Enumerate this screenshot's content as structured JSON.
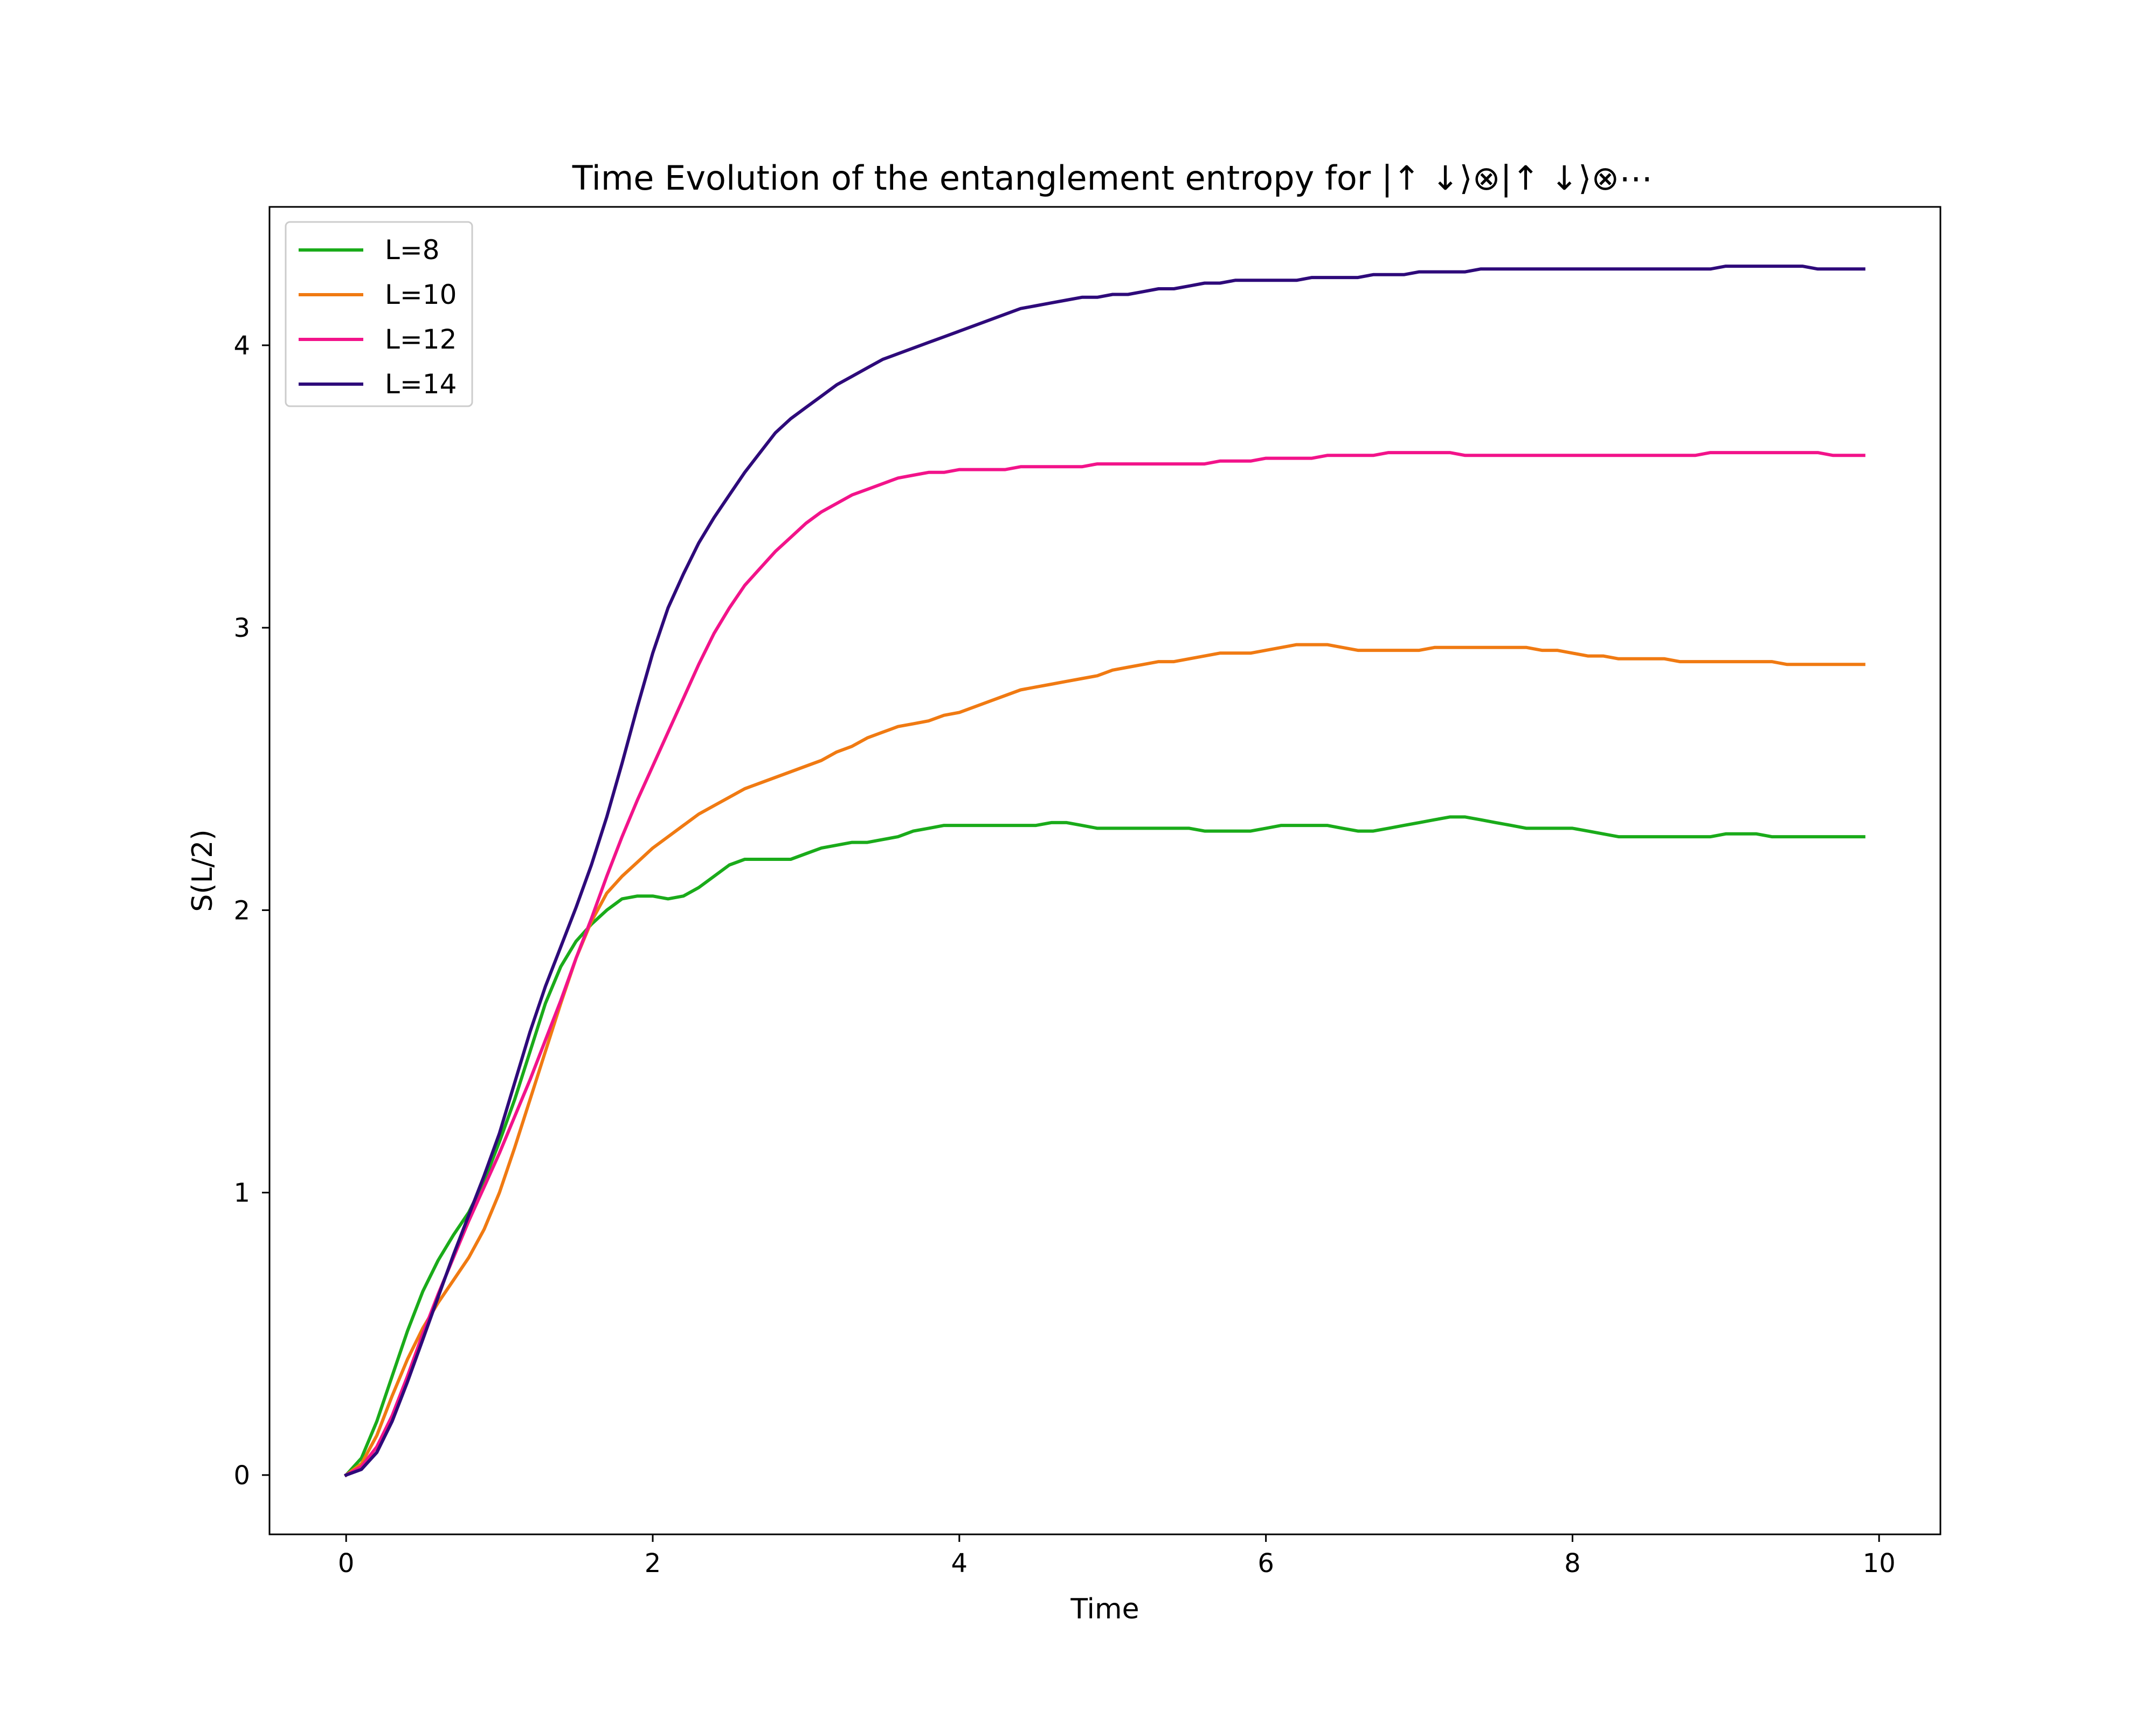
{
  "chart_data": {
    "type": "line",
    "title": "Time Evolution of the entanglement entropy for |↑ ↓⟩⊗|↑ ↓⟩⊗⋯",
    "xlabel": "Time",
    "ylabel": "S(L/2)",
    "xlim": [
      -0.5,
      10.4
    ],
    "ylim": [
      -0.21,
      4.49
    ],
    "xticks": [
      0,
      2,
      4,
      6,
      8,
      10
    ],
    "xtick_labels": [
      "0",
      "2",
      "4",
      "6",
      "8",
      "10"
    ],
    "yticks": [
      0,
      1,
      2,
      3,
      4
    ],
    "ytick_labels": [
      "0",
      "1",
      "2",
      "3",
      "4"
    ],
    "grid": false,
    "legend_position": "top-left",
    "x": [
      0,
      0.1,
      0.2,
      0.3,
      0.4,
      0.5,
      0.6,
      0.7,
      0.8,
      0.9,
      1.0,
      1.1,
      1.2,
      1.3,
      1.4,
      1.5,
      1.6,
      1.7,
      1.8,
      1.9,
      2.0,
      2.1,
      2.2,
      2.3,
      2.4,
      2.5,
      2.6,
      2.7,
      2.8,
      2.9,
      3.0,
      3.1,
      3.2,
      3.3,
      3.4,
      3.5,
      3.6,
      3.7,
      3.8,
      3.9,
      4.0,
      4.1,
      4.2,
      4.3,
      4.4,
      4.5,
      4.6,
      4.7,
      4.8,
      4.9,
      5.0,
      5.1,
      5.2,
      5.3,
      5.4,
      5.5,
      5.6,
      5.7,
      5.8,
      5.9,
      6.0,
      6.1,
      6.2,
      6.3,
      6.4,
      6.5,
      6.6,
      6.7,
      6.8,
      6.9,
      7.0,
      7.1,
      7.2,
      7.3,
      7.4,
      7.5,
      7.6,
      7.7,
      7.8,
      7.9,
      8.0,
      8.1,
      8.2,
      8.3,
      8.4,
      8.5,
      8.6,
      8.7,
      8.8,
      8.9,
      9.0,
      9.1,
      9.2,
      9.3,
      9.4,
      9.5,
      9.6,
      9.7,
      9.8,
      9.9
    ],
    "series": [
      {
        "name": "L=8",
        "color": "#1aab1a",
        "values": [
          0.0,
          0.06,
          0.19,
          0.35,
          0.51,
          0.65,
          0.76,
          0.85,
          0.93,
          1.04,
          1.18,
          1.33,
          1.5,
          1.67,
          1.8,
          1.89,
          1.95,
          2.0,
          2.04,
          2.05,
          2.05,
          2.04,
          2.05,
          2.08,
          2.12,
          2.16,
          2.18,
          2.18,
          2.18,
          2.18,
          2.2,
          2.22,
          2.23,
          2.24,
          2.24,
          2.25,
          2.26,
          2.28,
          2.29,
          2.3,
          2.3,
          2.3,
          2.3,
          2.3,
          2.3,
          2.3,
          2.31,
          2.31,
          2.3,
          2.29,
          2.29,
          2.29,
          2.29,
          2.29,
          2.29,
          2.29,
          2.28,
          2.28,
          2.28,
          2.28,
          2.29,
          2.3,
          2.3,
          2.3,
          2.3,
          2.29,
          2.28,
          2.28,
          2.29,
          2.3,
          2.31,
          2.32,
          2.33,
          2.33,
          2.32,
          2.31,
          2.3,
          2.29,
          2.29,
          2.29,
          2.29,
          2.28,
          2.27,
          2.26,
          2.26,
          2.26,
          2.26,
          2.26,
          2.26,
          2.26,
          2.27,
          2.27,
          2.27,
          2.26,
          2.26,
          2.26,
          2.26,
          2.26,
          2.26,
          2.26
        ]
      },
      {
        "name": "L=10",
        "color": "#f07a12",
        "values": [
          0.0,
          0.04,
          0.14,
          0.28,
          0.41,
          0.52,
          0.61,
          0.69,
          0.77,
          0.87,
          1.0,
          1.16,
          1.33,
          1.5,
          1.67,
          1.83,
          1.96,
          2.06,
          2.12,
          2.17,
          2.22,
          2.26,
          2.3,
          2.34,
          2.37,
          2.4,
          2.43,
          2.45,
          2.47,
          2.49,
          2.51,
          2.53,
          2.56,
          2.58,
          2.61,
          2.63,
          2.65,
          2.66,
          2.67,
          2.69,
          2.7,
          2.72,
          2.74,
          2.76,
          2.78,
          2.79,
          2.8,
          2.81,
          2.82,
          2.83,
          2.85,
          2.86,
          2.87,
          2.88,
          2.88,
          2.89,
          2.9,
          2.91,
          2.91,
          2.91,
          2.92,
          2.93,
          2.94,
          2.94,
          2.94,
          2.93,
          2.92,
          2.92,
          2.92,
          2.92,
          2.92,
          2.93,
          2.93,
          2.93,
          2.93,
          2.93,
          2.93,
          2.93,
          2.92,
          2.92,
          2.91,
          2.9,
          2.9,
          2.89,
          2.89,
          2.89,
          2.89,
          2.88,
          2.88,
          2.88,
          2.88,
          2.88,
          2.88,
          2.88,
          2.87,
          2.87,
          2.87,
          2.87,
          2.87,
          2.87
        ]
      },
      {
        "name": "L=12",
        "color": "#f2138a",
        "values": [
          0.0,
          0.03,
          0.1,
          0.21,
          0.35,
          0.5,
          0.64,
          0.77,
          0.9,
          1.02,
          1.14,
          1.27,
          1.4,
          1.54,
          1.68,
          1.83,
          1.97,
          2.12,
          2.26,
          2.39,
          2.51,
          2.63,
          2.75,
          2.87,
          2.98,
          3.07,
          3.15,
          3.21,
          3.27,
          3.32,
          3.37,
          3.41,
          3.44,
          3.47,
          3.49,
          3.51,
          3.53,
          3.54,
          3.55,
          3.55,
          3.56,
          3.56,
          3.56,
          3.56,
          3.57,
          3.57,
          3.57,
          3.57,
          3.57,
          3.58,
          3.58,
          3.58,
          3.58,
          3.58,
          3.58,
          3.58,
          3.58,
          3.59,
          3.59,
          3.59,
          3.6,
          3.6,
          3.6,
          3.6,
          3.61,
          3.61,
          3.61,
          3.61,
          3.62,
          3.62,
          3.62,
          3.62,
          3.62,
          3.61,
          3.61,
          3.61,
          3.61,
          3.61,
          3.61,
          3.61,
          3.61,
          3.61,
          3.61,
          3.61,
          3.61,
          3.61,
          3.61,
          3.61,
          3.61,
          3.62,
          3.62,
          3.62,
          3.62,
          3.62,
          3.62,
          3.62,
          3.62,
          3.61,
          3.61,
          3.61
        ]
      },
      {
        "name": "L=14",
        "color": "#2e0a7a",
        "values": [
          0.0,
          0.02,
          0.08,
          0.19,
          0.33,
          0.48,
          0.63,
          0.78,
          0.92,
          1.06,
          1.21,
          1.39,
          1.57,
          1.73,
          1.87,
          2.01,
          2.16,
          2.33,
          2.52,
          2.72,
          2.91,
          3.07,
          3.19,
          3.3,
          3.39,
          3.47,
          3.55,
          3.62,
          3.69,
          3.74,
          3.78,
          3.82,
          3.86,
          3.89,
          3.92,
          3.95,
          3.97,
          3.99,
          4.01,
          4.03,
          4.05,
          4.07,
          4.09,
          4.11,
          4.13,
          4.14,
          4.15,
          4.16,
          4.17,
          4.17,
          4.18,
          4.18,
          4.19,
          4.2,
          4.2,
          4.21,
          4.22,
          4.22,
          4.23,
          4.23,
          4.23,
          4.23,
          4.23,
          4.24,
          4.24,
          4.24,
          4.24,
          4.25,
          4.25,
          4.25,
          4.26,
          4.26,
          4.26,
          4.26,
          4.27,
          4.27,
          4.27,
          4.27,
          4.27,
          4.27,
          4.27,
          4.27,
          4.27,
          4.27,
          4.27,
          4.27,
          4.27,
          4.27,
          4.27,
          4.27,
          4.28,
          4.28,
          4.28,
          4.28,
          4.28,
          4.28,
          4.27,
          4.27,
          4.27,
          4.27
        ]
      }
    ]
  }
}
